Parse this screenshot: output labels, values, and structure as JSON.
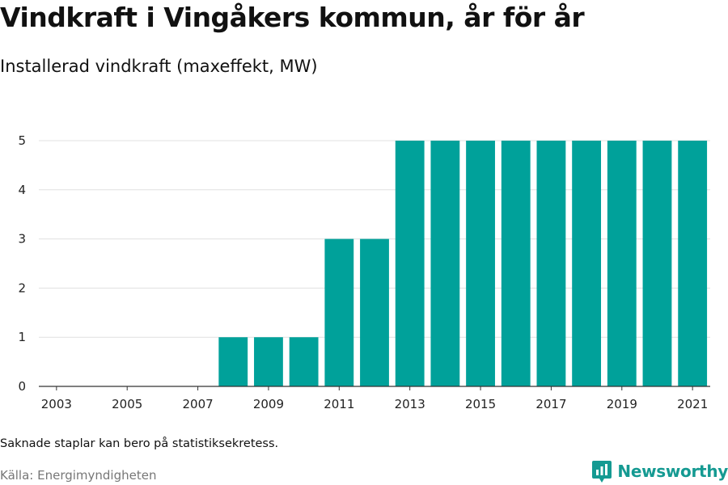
{
  "title": "Vindkraft i Vingåkers kommun, år för år",
  "subtitle": "Installerad vindkraft (maxeffekt, MW)",
  "footnote": "Saknade staplar kan bero på statistiksekretess.",
  "source": "Källa: Energimyndigheten",
  "brand": {
    "name": "Newsworthy",
    "icon": "newsworthy-logo-icon",
    "color": "#159a92"
  },
  "colors": {
    "bar": "#00a19a",
    "grid": "#e0e0e0",
    "axis": "#333333"
  },
  "chart_data": {
    "type": "bar",
    "title": "Vindkraft i Vingåkers kommun, år för år",
    "ylabel": "Installerad vindkraft (maxeffekt, MW)",
    "xlabel": "",
    "categories": [
      "2003",
      "2004",
      "2005",
      "2006",
      "2007",
      "2008",
      "2009",
      "2010",
      "2011",
      "2012",
      "2013",
      "2014",
      "2015",
      "2016",
      "2017",
      "2018",
      "2019",
      "2020",
      "2021"
    ],
    "values": [
      0,
      0,
      0,
      0,
      0,
      1,
      1,
      1,
      3,
      3,
      5,
      5,
      5,
      5,
      5,
      5,
      5,
      5,
      5
    ],
    "xticks": [
      "2003",
      "2005",
      "2007",
      "2009",
      "2011",
      "2013",
      "2015",
      "2017",
      "2019",
      "2021"
    ],
    "yticks": [
      0,
      1,
      2,
      3,
      4,
      5
    ],
    "ylim": [
      0,
      5
    ],
    "grid": true
  }
}
